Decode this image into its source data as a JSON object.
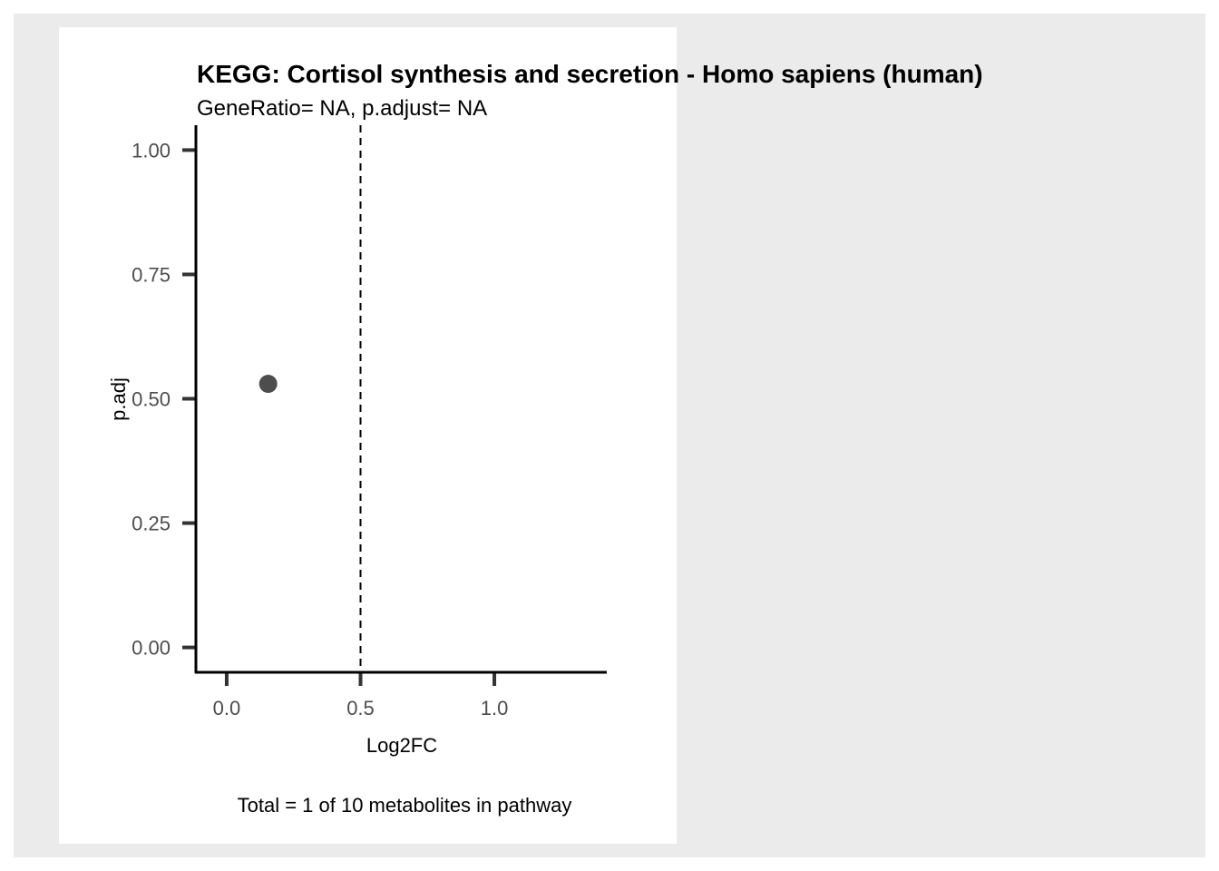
{
  "chart_data": {
    "type": "scatter",
    "title": "KEGG: Cortisol synthesis and secretion - Homo sapiens (human)",
    "subtitle": "GeneRatio= NA, p.adjust= NA",
    "xlabel": "Log2FC",
    "ylabel": "p.adj",
    "caption": "Total = 1 of 10 metabolites in pathway",
    "xlim": [
      -0.115,
      1.42
    ],
    "ylim": [
      -0.05,
      1.05
    ],
    "x_ticks": [
      0.0,
      0.5,
      1.0
    ],
    "x_tick_labels": [
      "0.0",
      "0.5",
      "1.0"
    ],
    "y_ticks": [
      0.0,
      0.25,
      0.5,
      0.75,
      1.0
    ],
    "y_tick_labels": [
      "0.00",
      "0.25",
      "0.50",
      "0.75",
      "1.00"
    ],
    "reference_lines": [
      {
        "orientation": "vertical",
        "x": 0.5,
        "style": "dashed"
      }
    ],
    "points": [
      {
        "x": 0.155,
        "y": 0.53
      }
    ],
    "grid": false
  },
  "colors": {
    "outer_background": "#ebebeb",
    "panel_background": "#ffffff",
    "point": "#4d4d4d",
    "axis": "#000000",
    "tick": "#333333"
  }
}
